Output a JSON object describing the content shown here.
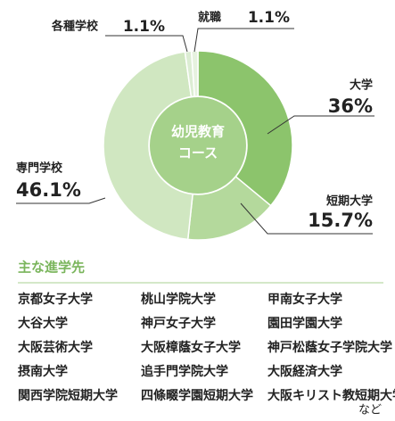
{
  "chart_data": {
    "type": "pie",
    "center_text": [
      "幼児教育",
      "コース"
    ],
    "categories": [
      "大学",
      "短期大学",
      "専門学校",
      "各種学校",
      "就職"
    ],
    "values": [
      36,
      15.7,
      46.1,
      1.1,
      1.1
    ],
    "value_labels": [
      "36%",
      "15.7%",
      "46.1%",
      "1.1%",
      "1.1%"
    ],
    "colors": [
      "#8cc46c",
      "#b4d99c",
      "#d0e7c1",
      "#dcedd3",
      "#e6f2df"
    ]
  },
  "section": {
    "title": "主な進学先",
    "items": [
      "京都女子大学",
      "桃山学院大学",
      "甲南女子大学",
      "大谷大学",
      "神戸女子大学",
      "園田学園大学",
      "大阪芸術大学",
      "大阪樟蔭女子大学",
      "神戸松蔭女子学院大学",
      "摂南大学",
      "追手門学院大学",
      "大阪経済大学",
      "関西学院短期大学",
      "四條畷学園短期大学",
      "大阪キリスト教短期大学"
    ],
    "note": "など"
  }
}
